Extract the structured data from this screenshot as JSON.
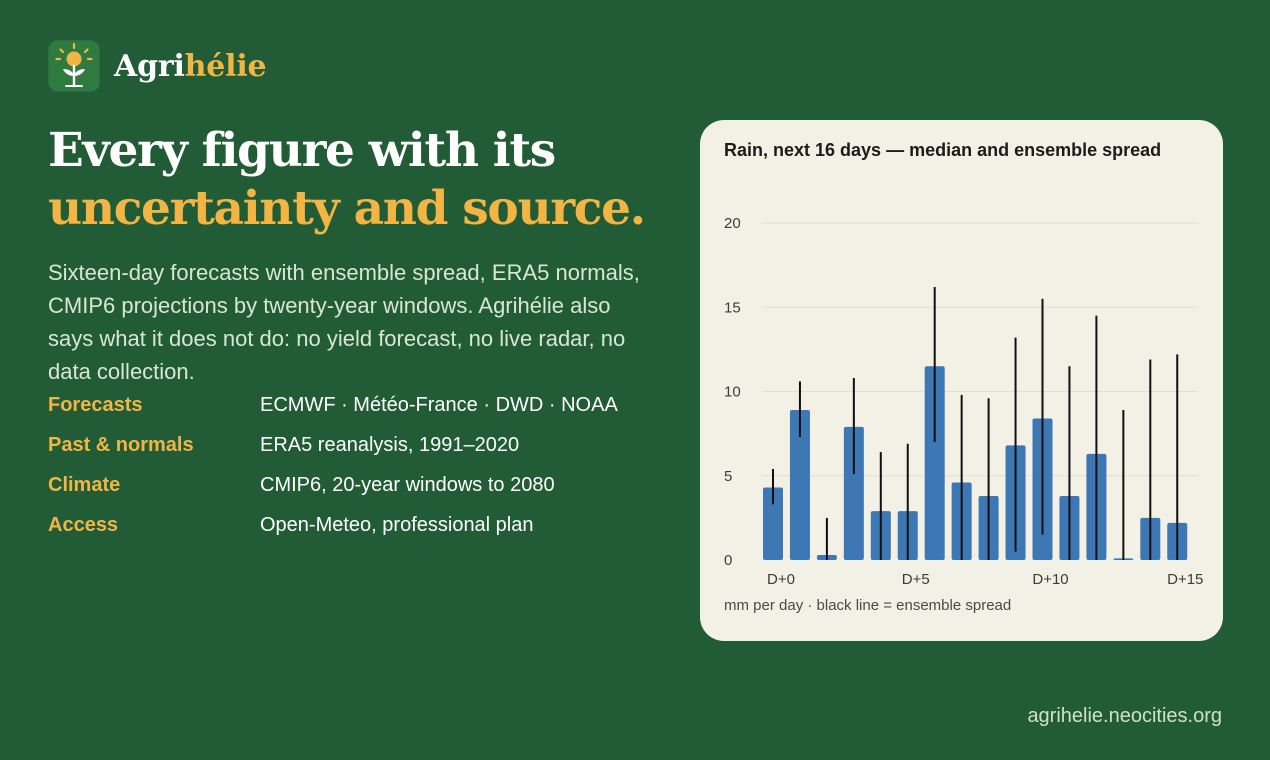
{
  "brand": {
    "name_plain": "Agri",
    "name_accent": "hélie",
    "accent_color": "#f2b544",
    "logo_icon": "sun-sprout-icon"
  },
  "headline": {
    "line1": "Every figure with its",
    "line2": "uncertainty and source."
  },
  "lede": "Sixteen-day forecasts with ensemble spread, ERA5 normals, CMIP6 projections by twenty-year windows. Agrihélie also says what it does not do: no yield forecast, no live radar, no data collection.",
  "facts": [
    {
      "key": "Forecasts",
      "value": "ECMWF · Météo-France · DWD · NOAA"
    },
    {
      "key": "Past & normals",
      "value": "ERA5 reanalysis, 1991–2020"
    },
    {
      "key": "Climate",
      "value": "CMIP6, 20-year windows to 2080"
    },
    {
      "key": "Access",
      "value": "Open-Meteo, professional plan"
    }
  ],
  "chart_card": {
    "footnote": "mm per day · black line = ensemble spread"
  },
  "chart_data": {
    "type": "bar",
    "title": "Rain, next 16 days — median and ensemble spread",
    "xlabel": "",
    "ylabel": "",
    "categories": [
      "D+0",
      "D+1",
      "D+2",
      "D+3",
      "D+4",
      "D+5",
      "D+6",
      "D+7",
      "D+8",
      "D+9",
      "D+10",
      "D+11",
      "D+12",
      "D+13",
      "D+14",
      "D+15"
    ],
    "x_tick_labels": [
      "D+0",
      "D+5",
      "D+10",
      "D+15"
    ],
    "y_ticks": [
      "0",
      "5",
      "10",
      "15",
      "20"
    ],
    "ylim": [
      0,
      20
    ],
    "grid": true,
    "bar_color": "#3d78b5",
    "spread_color": "#111111",
    "values": [
      4.3,
      8.9,
      0.3,
      7.9,
      2.9,
      2.9,
      11.5,
      4.6,
      3.8,
      6.8,
      8.4,
      3.8,
      6.3,
      0.1,
      2.5,
      2.2
    ],
    "spread": [
      [
        3.3,
        5.4
      ],
      [
        7.3,
        10.6
      ],
      [
        0.0,
        2.5
      ],
      [
        5.1,
        10.8
      ],
      [
        0.0,
        6.4
      ],
      [
        0.0,
        6.9
      ],
      [
        7.0,
        16.2
      ],
      [
        0.0,
        9.8
      ],
      [
        0.0,
        9.6
      ],
      [
        0.5,
        13.2
      ],
      [
        1.5,
        15.5
      ],
      [
        0.0,
        11.5
      ],
      [
        0.0,
        14.5
      ],
      [
        0.0,
        8.9
      ],
      [
        0.0,
        11.9
      ],
      [
        0.0,
        12.2
      ]
    ]
  },
  "footer": {
    "site": "agrihelie.neocities.org"
  }
}
